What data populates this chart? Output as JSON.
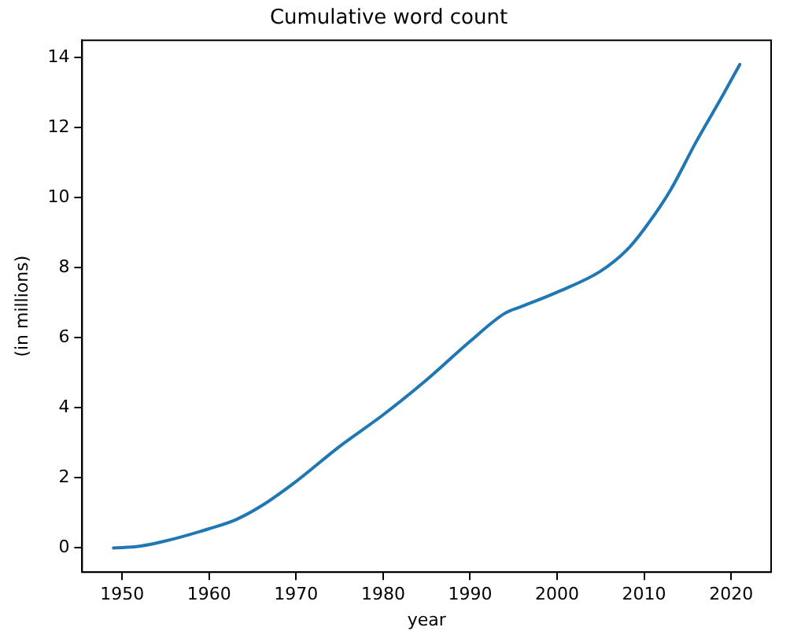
{
  "chart_data": {
    "type": "line",
    "title": "Cumulative word count",
    "xlabel": "year",
    "ylabel": "(in millions)",
    "x": [
      1949,
      1952,
      1955,
      1960,
      1963,
      1966,
      1970,
      1975,
      1980,
      1985,
      1990,
      1994,
      1996,
      2000,
      2005,
      2008,
      2010,
      2013,
      2016,
      2019,
      2021
    ],
    "series": [
      {
        "color": "#1f77b4",
        "values": [
          0,
          0.05,
          0.2,
          0.55,
          0.8,
          1.2,
          1.9,
          2.9,
          3.8,
          4.8,
          5.9,
          6.7,
          6.9,
          7.3,
          7.9,
          8.5,
          9.1,
          10.2,
          11.6,
          12.9,
          13.8
        ]
      }
    ],
    "xlim": [
      1945.4,
      2024.6
    ],
    "ylim": [
      -0.69,
      14.49
    ],
    "xticks": [
      1950,
      1960,
      1970,
      1980,
      1990,
      2000,
      2010,
      2020
    ],
    "yticks": [
      0,
      2,
      4,
      6,
      8,
      10,
      12,
      14
    ],
    "grid": false,
    "legend": false,
    "marker": "none",
    "line_style": "solid"
  }
}
